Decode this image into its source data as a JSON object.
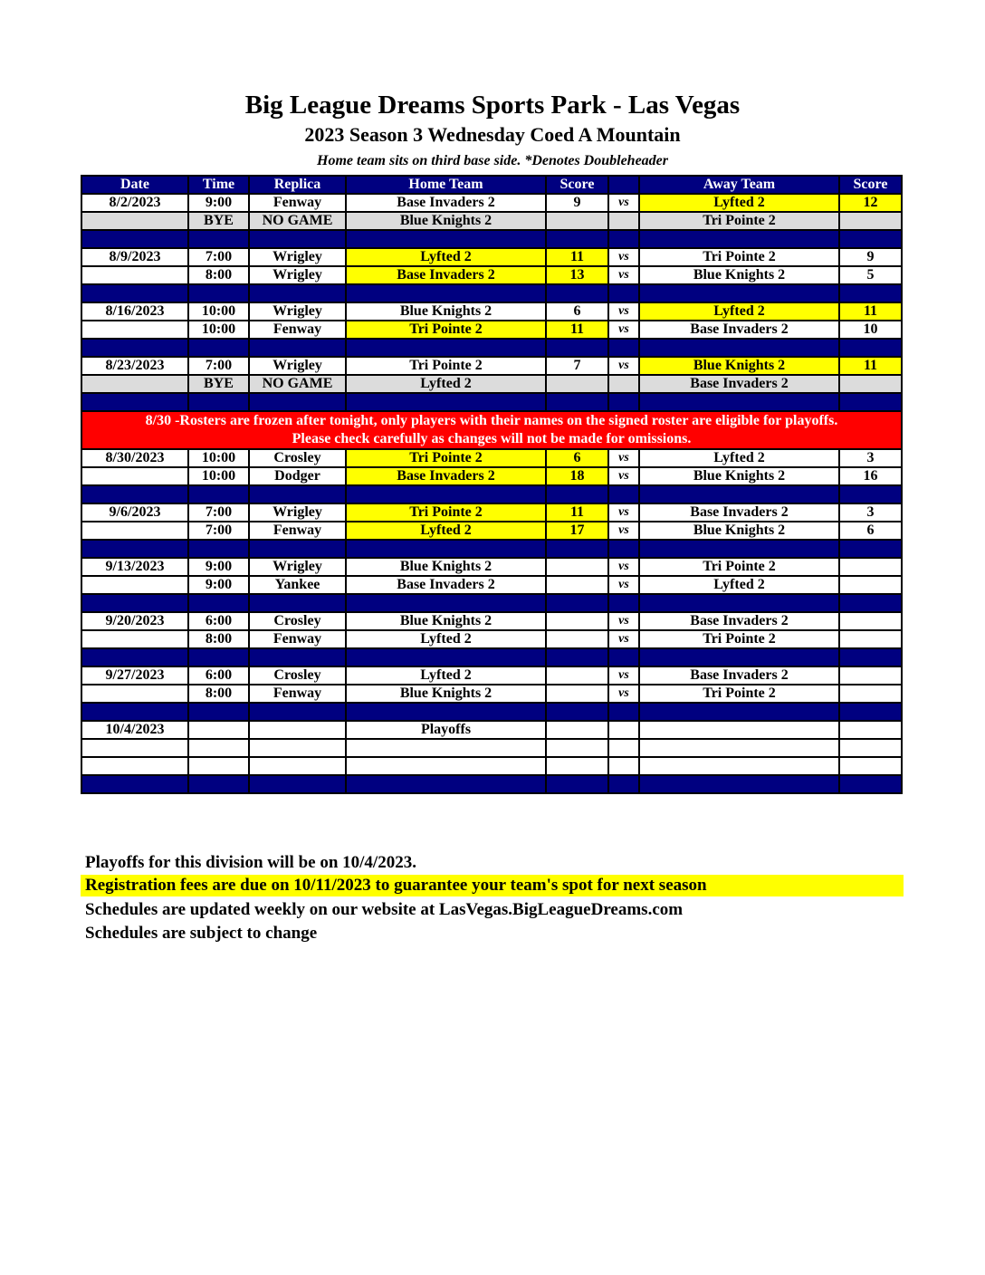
{
  "title": "Big League Dreams Sports Park - Las Vegas",
  "subtitle": "2023 Season 3 Wednesday Coed A Mountain",
  "note": "Home team sits on third base side.  *Denotes Doubleheader",
  "columns": [
    "Date",
    "Time",
    "Replica",
    "Home Team",
    "Score",
    "",
    "Away Team",
    "Score"
  ],
  "colors": {
    "header": "#000080",
    "highlight": "#ffff00",
    "bye": "#dcdcdc",
    "notice": "#ff0000"
  },
  "rows": [
    {
      "type": "game",
      "date": "8/2/2023",
      "time": "9:00",
      "field": "Fenway",
      "home": "Base Invaders 2",
      "hs": "9",
      "vs": "vs",
      "away": "Lyfted 2",
      "as": "12",
      "winner": "away"
    },
    {
      "type": "bye",
      "time": "BYE",
      "field": "NO GAME",
      "home": "Blue Knights 2",
      "away": "Tri Pointe 2"
    },
    {
      "type": "spacer"
    },
    {
      "type": "game",
      "date": "8/9/2023",
      "time": "7:00",
      "field": "Wrigley",
      "home": "Lyfted 2",
      "hs": "11",
      "vs": "vs",
      "away": "Tri Pointe 2",
      "as": "9",
      "winner": "home"
    },
    {
      "type": "game",
      "date": "",
      "time": "8:00",
      "field": "Wrigley",
      "home": "Base Invaders 2",
      "hs": "13",
      "vs": "vs",
      "away": "Blue Knights 2",
      "as": "5",
      "winner": "home"
    },
    {
      "type": "spacer"
    },
    {
      "type": "game",
      "date": "8/16/2023",
      "time": "10:00",
      "field": "Wrigley",
      "home": "Blue Knights 2",
      "hs": "6",
      "vs": "vs",
      "away": "Lyfted 2",
      "as": "11",
      "winner": "away"
    },
    {
      "type": "game",
      "date": "",
      "time": "10:00",
      "field": "Fenway",
      "home": "Tri Pointe 2",
      "hs": "11",
      "vs": "vs",
      "away": "Base Invaders 2",
      "as": "10",
      "winner": "home"
    },
    {
      "type": "spacer"
    },
    {
      "type": "game",
      "date": "8/23/2023",
      "time": "7:00",
      "field": "Wrigley",
      "home": "Tri Pointe 2",
      "hs": "7",
      "vs": "vs",
      "away": "Blue Knights 2",
      "as": "11",
      "winner": "away"
    },
    {
      "type": "bye",
      "time": "BYE",
      "field": "NO GAME",
      "home": "Lyfted 2",
      "away": "Base Invaders 2"
    },
    {
      "type": "spacer"
    },
    {
      "type": "notice",
      "line1": "8/30 -Rosters are frozen after tonight, only players with their names on the signed roster are eligible for playoffs.",
      "line2": "Please check carefully as changes will not be made for omissions."
    },
    {
      "type": "game",
      "date": "8/30/2023",
      "time": "10:00",
      "field": "Crosley",
      "home": "Tri Pointe 2",
      "hs": "6",
      "vs": "vs",
      "away": "Lyfted 2",
      "as": "3",
      "winner": "home"
    },
    {
      "type": "game",
      "date": "",
      "time": "10:00",
      "field": "Dodger",
      "home": "Base Invaders 2",
      "hs": "18",
      "vs": "vs",
      "away": "Blue Knights 2",
      "as": "16",
      "winner": "home"
    },
    {
      "type": "spacer"
    },
    {
      "type": "game",
      "date": "9/6/2023",
      "time": "7:00",
      "field": "Wrigley",
      "home": "Tri Pointe 2",
      "hs": "11",
      "vs": "vs",
      "away": "Base Invaders 2",
      "as": "3",
      "winner": "home"
    },
    {
      "type": "game",
      "date": "",
      "time": "7:00",
      "field": "Fenway",
      "home": "Lyfted 2",
      "hs": "17",
      "vs": "vs",
      "away": "Blue Knights 2",
      "as": "6",
      "winner": "home"
    },
    {
      "type": "spacer"
    },
    {
      "type": "game",
      "date": "9/13/2023",
      "time": "9:00",
      "field": "Wrigley",
      "home": "Blue Knights 2",
      "hs": "",
      "vs": "vs",
      "away": "Tri Pointe 2",
      "as": ""
    },
    {
      "type": "game",
      "date": "",
      "time": "9:00",
      "field": "Yankee",
      "home": "Base Invaders 2",
      "hs": "",
      "vs": "vs",
      "away": "Lyfted 2",
      "as": ""
    },
    {
      "type": "spacer"
    },
    {
      "type": "game",
      "date": "9/20/2023",
      "time": "6:00",
      "field": "Crosley",
      "home": "Blue Knights 2",
      "hs": "",
      "vs": "vs",
      "away": "Base Invaders 2",
      "as": ""
    },
    {
      "type": "game",
      "date": "",
      "time": "8:00",
      "field": "Fenway",
      "home": "Lyfted 2",
      "hs": "",
      "vs": "vs",
      "away": "Tri Pointe 2",
      "as": ""
    },
    {
      "type": "spacer"
    },
    {
      "type": "game",
      "date": "9/27/2023",
      "time": "6:00",
      "field": "Crosley",
      "home": "Lyfted 2",
      "hs": "",
      "vs": "vs",
      "away": "Base Invaders 2",
      "as": ""
    },
    {
      "type": "game",
      "date": "",
      "time": "8:00",
      "field": "Fenway",
      "home": "Blue Knights 2",
      "hs": "",
      "vs": "vs",
      "away": "Tri Pointe 2",
      "as": ""
    },
    {
      "type": "spacer"
    },
    {
      "type": "game",
      "date": "10/4/2023",
      "time": "",
      "field": "",
      "home": "Playoffs",
      "hs": "",
      "vs": "",
      "away": "",
      "as": ""
    },
    {
      "type": "game",
      "date": "",
      "time": "",
      "field": "",
      "home": "",
      "hs": "",
      "vs": "",
      "away": "",
      "as": ""
    },
    {
      "type": "game",
      "date": "",
      "time": "",
      "field": "",
      "home": "",
      "hs": "",
      "vs": "",
      "away": "",
      "as": ""
    },
    {
      "type": "spacer"
    }
  ],
  "footer": [
    "Playoffs for this division will be on 10/4/2023.",
    "Registration fees are due on 10/11/2023 to guarantee your team's spot for next season",
    "Schedules are updated weekly on our website at LasVegas.BigLeagueDreams.com",
    "Schedules are subject to change"
  ]
}
